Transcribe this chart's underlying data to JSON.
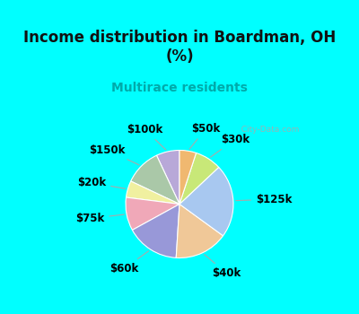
{
  "title": "Income distribution in Boardman, OH\n(%)",
  "subtitle": "Multirace residents",
  "labels": [
    "$100k",
    "$150k",
    "$20k",
    "$75k",
    "$60k",
    "$40k",
    "$125k",
    "$30k",
    "$50k"
  ],
  "values": [
    7,
    11,
    5,
    10,
    16,
    16,
    22,
    8,
    5
  ],
  "colors": [
    "#b8a8d8",
    "#aac8a8",
    "#f0f0a0",
    "#f0a8b8",
    "#9898d8",
    "#f0c898",
    "#a8c8f0",
    "#c8e878",
    "#f0b870"
  ],
  "background_cyan": "#00ffff",
  "background_chart": "#e0f0e8",
  "title_color": "#111111",
  "subtitle_color": "#00aaaa",
  "watermark": "City-Data.com",
  "startangle": 90,
  "label_fontsize": 8.5,
  "title_fontsize": 12,
  "subtitle_fontsize": 10
}
